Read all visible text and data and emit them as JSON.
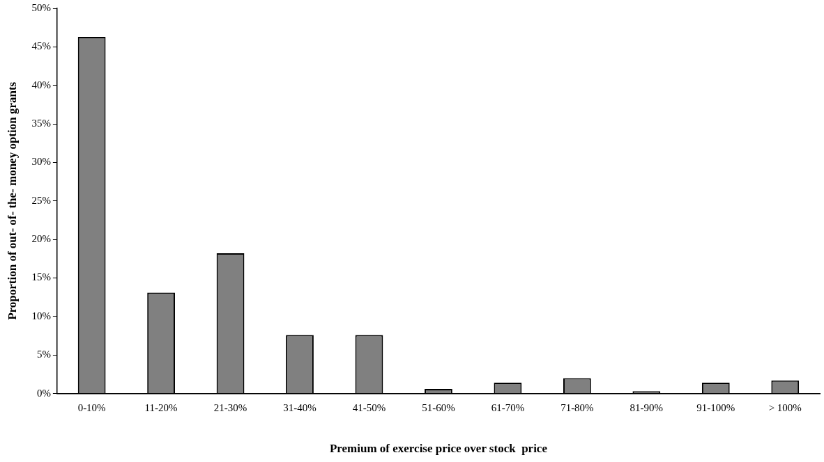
{
  "chart_data": {
    "type": "bar",
    "xlabel": "Premium of exercise price over stock  price",
    "ylabel": "Proportion of out- of- the- money option grants",
    "categories": [
      "0-10%",
      "11-20%",
      "21-30%",
      "31-40%",
      "41-50%",
      "51-60%",
      "61-70%",
      "71-80%",
      "81-90%",
      "91-100%",
      "> 100%"
    ],
    "values": [
      46.3,
      13.1,
      18.2,
      7.6,
      7.6,
      0.6,
      1.4,
      2.0,
      0.3,
      1.4,
      1.7
    ],
    "color": "#808080",
    "ylim": [
      0,
      50
    ],
    "yticks": [
      {
        "value": 0,
        "label": "0%"
      },
      {
        "value": 5,
        "label": "5%"
      },
      {
        "value": 10,
        "label": "10%"
      },
      {
        "value": 15,
        "label": "15%"
      },
      {
        "value": 20,
        "label": "20%"
      },
      {
        "value": 25,
        "label": "25%"
      },
      {
        "value": 30,
        "label": "30%"
      },
      {
        "value": 35,
        "label": "35%"
      },
      {
        "value": 40,
        "label": "40%"
      },
      {
        "value": 45,
        "label": "45%"
      },
      {
        "value": 50,
        "label": "50%"
      }
    ],
    "grid": false,
    "legend": false
  }
}
